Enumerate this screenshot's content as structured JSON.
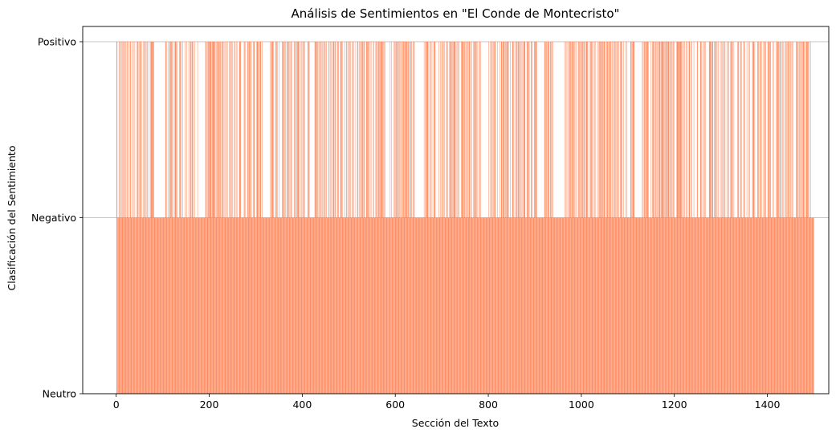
{
  "chart_data": {
    "type": "bar",
    "title": "Análisis de Sentimientos en \"El Conde de Montecristo\"",
    "xlabel": "Sección del Texto",
    "ylabel": "Clasificación del Sentimiento",
    "categories_y": [
      "Neutro",
      "Negativo",
      "Positivo"
    ],
    "xlim": [
      -72,
      1532
    ],
    "xticks": [
      0,
      200,
      400,
      600,
      800,
      1000,
      1200,
      1400
    ],
    "ylim": [
      0,
      2
    ],
    "grid": "horizontal",
    "bar_color": "#FF7F50",
    "n_sections": 1500,
    "section_step": 1,
    "sentiment_pattern_note": "",
    "negative_sections_ranges": [
      [
        87,
        105
      ],
      [
        177,
        190
      ],
      [
        315,
        330
      ],
      [
        643,
        660
      ],
      [
        785,
        800
      ],
      [
        905,
        920
      ],
      [
        940,
        960
      ],
      [
        1115,
        1130
      ],
      [
        1495,
        1500
      ]
    ]
  }
}
